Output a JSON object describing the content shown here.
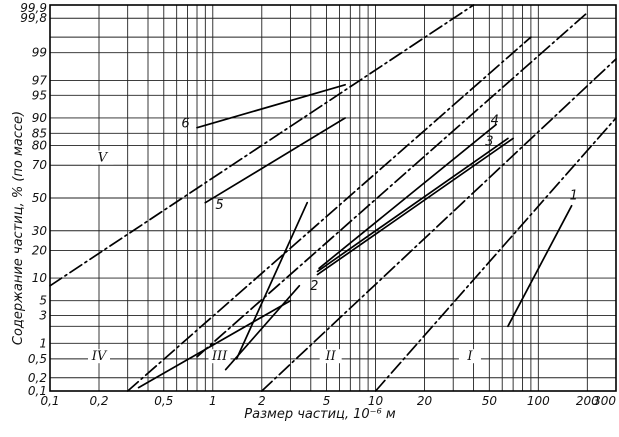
{
  "chart_data": {
    "type": "line",
    "title": "",
    "xlabel": "Размер частиц, 10⁻⁶ м",
    "ylabel": "Содержание частиц, % (по массе)",
    "xscale": "log",
    "yscale": "probability",
    "xlim": [
      0.1,
      300
    ],
    "ylim": [
      0.1,
      99.9
    ],
    "x_ticks": [
      {
        "v": 0.1,
        "label": "0,1"
      },
      {
        "v": 0.2,
        "label": "0,2"
      },
      {
        "v": 0.5,
        "label": "0,5"
      },
      {
        "v": 1,
        "label": "1"
      },
      {
        "v": 2,
        "label": "2"
      },
      {
        "v": 5,
        "label": "5"
      },
      {
        "v": 10,
        "label": "10"
      },
      {
        "v": 20,
        "label": "20"
      },
      {
        "v": 50,
        "label": "50"
      },
      {
        "v": 100,
        "label": "100"
      },
      {
        "v": 200,
        "label": "200"
      },
      {
        "v": 300,
        "label": "300"
      }
    ],
    "y_ticks": [
      {
        "v": 0.1,
        "label": "0,1"
      },
      {
        "v": 0.2,
        "label": "0,2"
      },
      {
        "v": 0.5,
        "label": "0,5"
      },
      {
        "v": 1,
        "label": "1"
      },
      {
        "v": 3,
        "label": "3"
      },
      {
        "v": 5,
        "label": "5"
      },
      {
        "v": 10,
        "label": "10"
      },
      {
        "v": 20,
        "label": "20"
      },
      {
        "v": 30,
        "label": "30"
      },
      {
        "v": 50,
        "label": "50"
      },
      {
        "v": 70,
        "label": "70"
      },
      {
        "v": 80,
        "label": "80"
      },
      {
        "v": 85,
        "label": "85"
      },
      {
        "v": 90,
        "label": "90"
      },
      {
        "v": 95,
        "label": "95"
      },
      {
        "v": 97,
        "label": "97"
      },
      {
        "v": 99,
        "label": "99"
      },
      {
        "v": 99.8,
        "label": "99,8"
      },
      {
        "v": 99.9,
        "label": "99,9"
      }
    ],
    "x_grid_minor": [
      0.3,
      0.4,
      0.6,
      0.7,
      0.8,
      0.9,
      3,
      4,
      6,
      7,
      8,
      9,
      30,
      40,
      60,
      70,
      80,
      90
    ],
    "y_grid_minor": [
      2,
      99.5
    ],
    "grid": true,
    "series": [
      {
        "name": "1",
        "style": "solid",
        "points": [
          [
            65,
            2
          ],
          [
            160,
            45
          ]
        ]
      },
      {
        "name": "2",
        "style": "solid",
        "points": [
          [
            4.4,
            11
          ],
          [
            70,
            83
          ]
        ]
      },
      {
        "name": "3",
        "style": "solid",
        "points": [
          [
            4.4,
            12
          ],
          [
            65,
            83
          ]
        ]
      },
      {
        "name": "4",
        "style": "solid",
        "points": [
          [
            4.5,
            13
          ],
          [
            55,
            88
          ]
        ]
      },
      {
        "name": "5",
        "style": "solid",
        "points": [
          [
            0.9,
            47
          ],
          [
            6.5,
            90
          ]
        ]
      },
      {
        "name": "6",
        "style": "solid",
        "points": [
          [
            0.8,
            87
          ],
          [
            6.5,
            96.5
          ]
        ]
      },
      {
        "name": "",
        "style": "solid",
        "points": [
          [
            1.4,
            0.5
          ],
          [
            3.8,
            47
          ]
        ]
      },
      {
        "name": "",
        "style": "solid",
        "points": [
          [
            1.2,
            0.3
          ],
          [
            3.4,
            8
          ]
        ]
      },
      {
        "name": "I",
        "style": "dashdot",
        "points": [
          [
            10,
            0.1
          ],
          [
            300,
            90
          ]
        ]
      },
      {
        "name": "II",
        "style": "dashdot",
        "points": [
          [
            2,
            0.1
          ],
          [
            300,
            98.7
          ]
        ]
      },
      {
        "name": "III",
        "style": "dashdot",
        "points": [
          [
            0.8,
            0.55
          ],
          [
            200,
            99.85
          ]
        ]
      },
      {
        "name": "IV",
        "style": "dashdot",
        "points": [
          [
            0.3,
            0.1
          ],
          [
            90,
            99.5
          ]
        ]
      },
      {
        "name": "V",
        "style": "dashdot",
        "points": [
          [
            0.1,
            8
          ],
          [
            40,
            99.9
          ]
        ]
      },
      {
        "name": "",
        "style": "solid",
        "points": [
          [
            0.35,
            0.12
          ],
          [
            3,
            5
          ]
        ]
      }
    ],
    "curve_labels": [
      {
        "text": "1",
        "x": 165,
        "y": 49
      },
      {
        "text": "2",
        "x": 4.2,
        "y": 7
      },
      {
        "text": "3",
        "x": 50,
        "y": 80
      },
      {
        "text": "4",
        "x": 54,
        "y": 88
      },
      {
        "text": "5",
        "x": 1.1,
        "y": 43
      },
      {
        "text": "6",
        "x": 0.68,
        "y": 87
      }
    ],
    "zone_labels": [
      {
        "text": "I",
        "x": 38,
        "y": 0.47
      },
      {
        "text": "II",
        "x": 5.3,
        "y": 0.47
      },
      {
        "text": "III",
        "x": 1.1,
        "y": 0.47
      },
      {
        "text": "IV",
        "x": 0.2,
        "y": 0.47
      },
      {
        "text": "V",
        "x": 0.21,
        "y": 72
      }
    ]
  }
}
